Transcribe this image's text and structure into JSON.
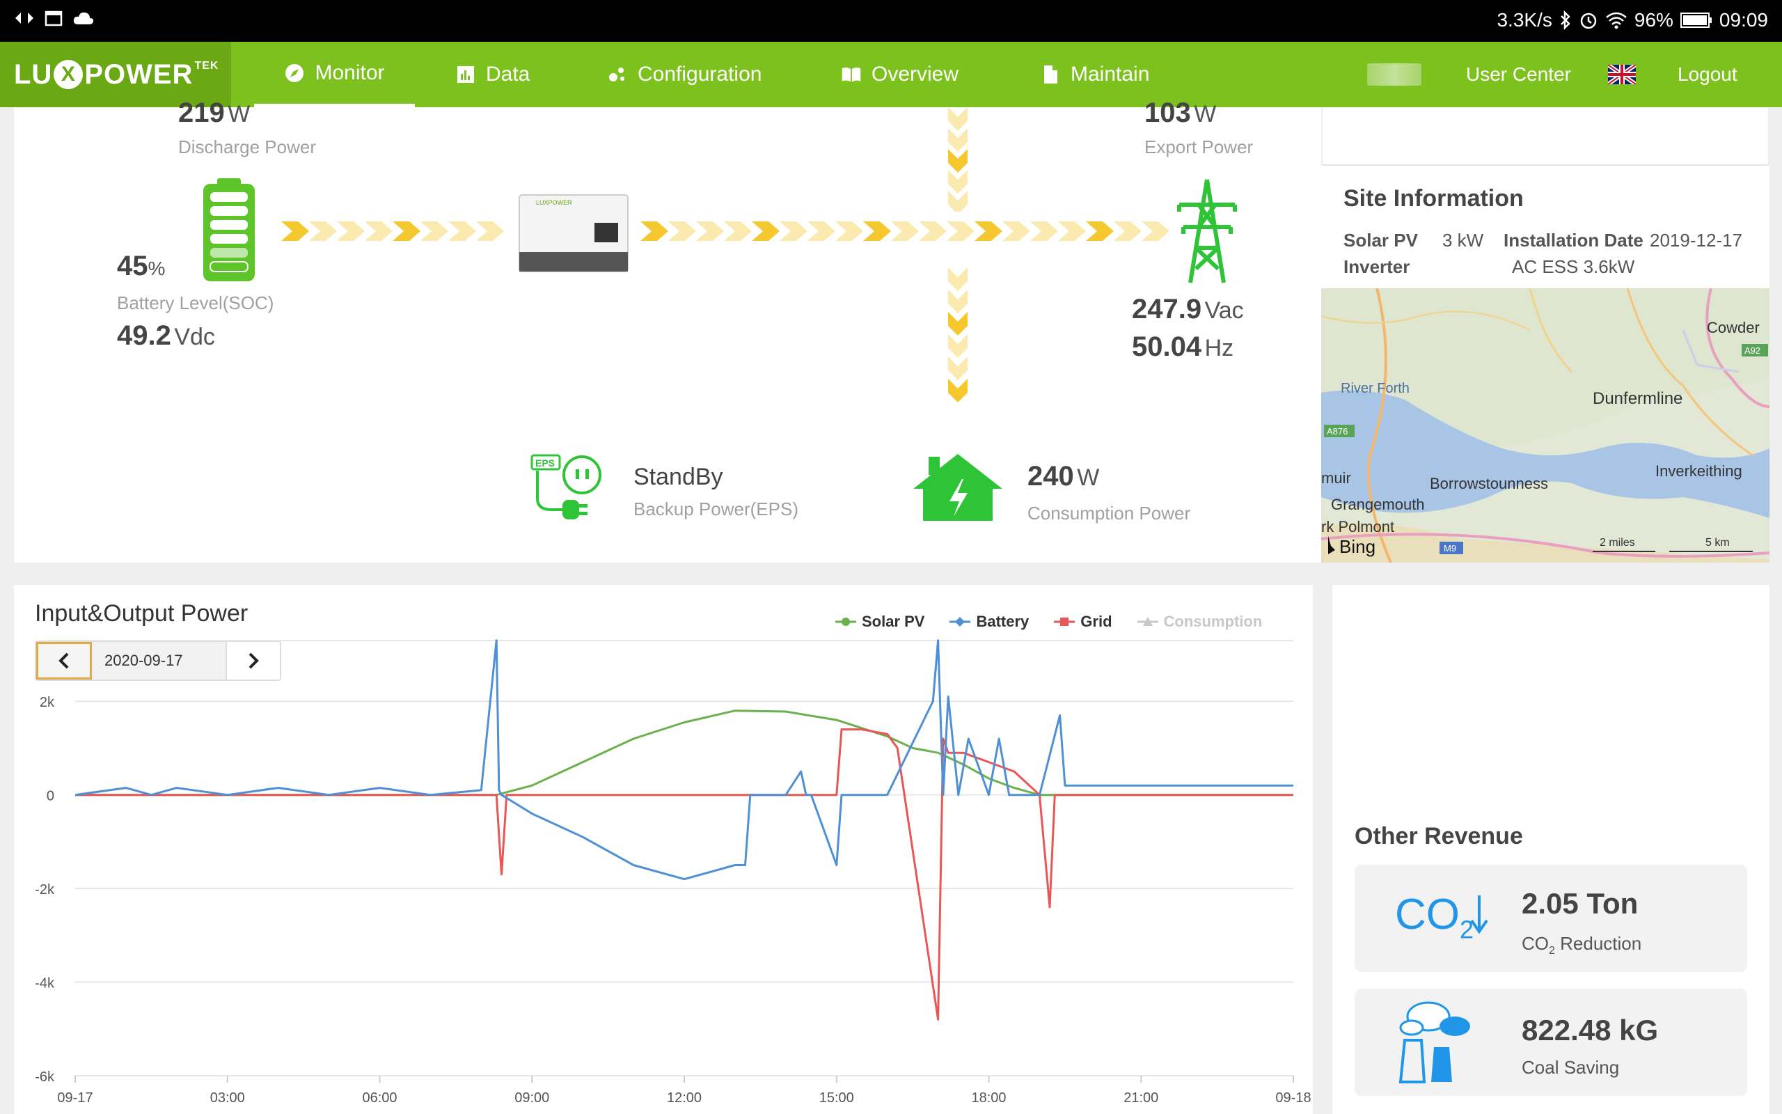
{
  "statusbar": {
    "speed": "3.3K/s",
    "battery": "96%",
    "time": "09:09"
  },
  "nav": {
    "brand_left": "LU",
    "brand_x": "X",
    "brand_right": "POWER",
    "brand_tek": "TEK",
    "items": [
      {
        "label": "Monitor",
        "active": true
      },
      {
        "label": "Data"
      },
      {
        "label": "Configuration"
      },
      {
        "label": "Overview"
      },
      {
        "label": "Maintain"
      }
    ],
    "user_center": "User Center",
    "logout": "Logout"
  },
  "flow": {
    "discharge_value": "219",
    "discharge_unit": "W",
    "discharge_label": "Discharge Power",
    "soc_value": "45",
    "soc_unit": "%",
    "soc_label": "Battery Level(SOC)",
    "battery_voltage": "49.2",
    "battery_voltage_unit": "Vdc",
    "export_value": "103",
    "export_unit": "W",
    "export_label": "Export Power",
    "grid_voltage": "247.9",
    "grid_voltage_unit": "Vac",
    "grid_freq": "50.04",
    "grid_freq_unit": "Hz",
    "eps_status": "StandBy",
    "eps_label": "Backup Power(EPS)",
    "eps_badge": "EPS",
    "consumption_value": "240",
    "consumption_unit": "W",
    "consumption_label": "Consumption Power",
    "inverter_brand": "LUXPOWER"
  },
  "site": {
    "title": "Site Information",
    "solar_label": "Solar PV",
    "solar_value": "3 kW",
    "install_label": "Installation Date",
    "install_value": "2019-12-17",
    "inverter_label": "Inverter",
    "inverter_value": "AC ESS 3.6kW",
    "map": {
      "places": [
        "Cowder",
        "River Forth",
        "Dunfermline",
        "Inverkeithing",
        "Borrowstounness",
        "muir",
        "Grangemouth",
        "rk Polmont"
      ],
      "roads": [
        "A92",
        "A876",
        "M9"
      ],
      "scale_miles": "2 miles",
      "scale_km": "5 km",
      "provider": "Bing"
    }
  },
  "chart_card": {
    "title": "Input&Output Power",
    "date": "2020-09-17"
  },
  "revenue": {
    "title": "Other Revenue",
    "co2_value": "2.05 Ton",
    "co2_label": "CO",
    "co2_label_sub": "2",
    "co2_label_rest": " Reduction",
    "co2_icon_text": "CO",
    "co2_icon_sub": "2",
    "coal_value": "822.48 kG",
    "coal_label": "Coal Saving"
  },
  "chart_data": {
    "type": "line",
    "x_ticks": [
      "09-17",
      "03:00",
      "06:00",
      "09:00",
      "12:00",
      "15:00",
      "18:00",
      "21:00",
      "09-18"
    ],
    "y_ticks": [
      "2k",
      "0",
      "-2k",
      "-4k",
      "-6k"
    ],
    "ylim": [
      -6000,
      3000
    ],
    "grid": true,
    "legend_position": "top-right",
    "colors": {
      "Solar PV": "#6ab04c",
      "Battery": "#4f8fd6",
      "Grid": "#e85656",
      "Consumption": "#c8c8c8"
    },
    "series": [
      {
        "name": "Solar PV",
        "x_hours": [
          0,
          8.3,
          9,
          10,
          11,
          12,
          13,
          14,
          15,
          16,
          16.5,
          17,
          17.5,
          18,
          18.5,
          19,
          24
        ],
        "values": [
          0,
          0,
          200,
          700,
          1200,
          1550,
          1800,
          1780,
          1600,
          1250,
          1000,
          900,
          650,
          350,
          150,
          0,
          0
        ]
      },
      {
        "name": "Battery",
        "x_hours": [
          0,
          1,
          1.5,
          2,
          3,
          4,
          5,
          6,
          7,
          8,
          8.3,
          8.35,
          8.4,
          9,
          10,
          11,
          12,
          13,
          13.2,
          13.3,
          14,
          14.3,
          14.4,
          14.5,
          15,
          15.1,
          15.2,
          16,
          16.9,
          17,
          17.1,
          17.2,
          17.4,
          17.6,
          18,
          18.2,
          18.4,
          19,
          19.4,
          19.5,
          19.6,
          21,
          22,
          23,
          24
        ],
        "values": [
          0,
          150,
          0,
          150,
          0,
          150,
          0,
          150,
          0,
          100,
          3300,
          100,
          0,
          -400,
          -900,
          -1500,
          -1800,
          -1500,
          -1500,
          0,
          0,
          500,
          0,
          0,
          -1500,
          0,
          0,
          0,
          2000,
          3300,
          0,
          2100,
          0,
          1200,
          0,
          1200,
          0,
          0,
          1700,
          200,
          200,
          200,
          200,
          200,
          200
        ]
      },
      {
        "name": "Grid",
        "x_hours": [
          0,
          8.3,
          8.4,
          8.5,
          12,
          15,
          15.1,
          15.5,
          16,
          16.2,
          17,
          17.1,
          17.2,
          17.5,
          18,
          18.5,
          19,
          19.2,
          19.3,
          19.4,
          24
        ],
        "values": [
          0,
          0,
          -1700,
          0,
          0,
          0,
          1400,
          1400,
          1300,
          1000,
          -4800,
          1200,
          900,
          900,
          700,
          500,
          0,
          -2400,
          0,
          0,
          0
        ]
      },
      {
        "name": "Consumption",
        "x_hours": [
          0,
          24
        ],
        "values": [
          0,
          0
        ]
      }
    ]
  }
}
